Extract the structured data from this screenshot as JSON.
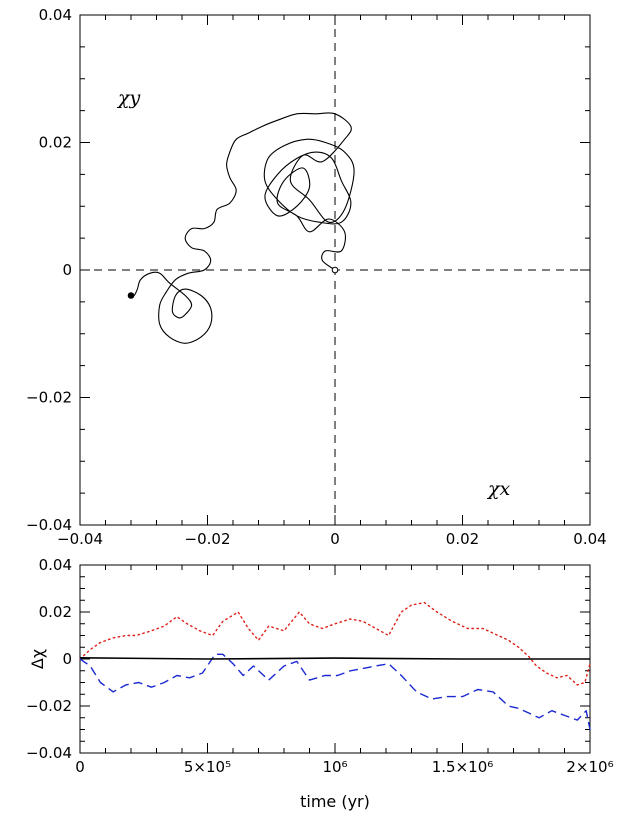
{
  "chart_data": [
    {
      "type": "line",
      "title": "",
      "xlabel": "χx",
      "ylabel": "χy",
      "xlim": [
        -0.04,
        0.04
      ],
      "ylim": [
        -0.04,
        0.04
      ],
      "xticks": [
        "−0.04",
        "−0.02",
        "0",
        "0.02",
        "0.04"
      ],
      "yticks": [
        "−0.04",
        "−0.02",
        "0",
        "0.02",
        "0.04"
      ],
      "reference_lines": [
        {
          "axis": "x",
          "value": 0
        },
        {
          "axis": "y",
          "value": 0
        }
      ],
      "start_marker": [
        0.0,
        0.0
      ],
      "end_marker": [
        -0.032,
        -0.004
      ],
      "series": [
        {
          "color": "#000000",
          "points": [
            [
              0.0,
              0.0
            ],
            [
              -0.002,
              0.0015
            ],
            [
              -0.0015,
              0.003
            ],
            [
              0.001,
              0.003
            ],
            [
              0.0015,
              0.006
            ],
            [
              -0.001,
              0.008
            ],
            [
              -0.004,
              0.006
            ],
            [
              -0.006,
              0.0085
            ],
            [
              -0.009,
              0.0105
            ],
            [
              -0.008,
              0.014
            ],
            [
              -0.005,
              0.016
            ],
            [
              -0.004,
              0.013
            ],
            [
              -0.006,
              0.01
            ],
            [
              -0.009,
              0.0085
            ],
            [
              -0.011,
              0.0115
            ],
            [
              -0.009,
              0.015
            ],
            [
              -0.006,
              0.0175
            ],
            [
              -0.003,
              0.0185
            ],
            [
              -0.0005,
              0.0175
            ],
            [
              0.001,
              0.014
            ],
            [
              0.0025,
              0.0105
            ],
            [
              0.001,
              0.0075
            ],
            [
              -0.0025,
              0.0075
            ],
            [
              -0.006,
              0.0085
            ],
            [
              -0.009,
              0.011
            ],
            [
              -0.011,
              0.014
            ],
            [
              -0.0105,
              0.0175
            ],
            [
              -0.008,
              0.0195
            ],
            [
              -0.0045,
              0.0205
            ],
            [
              -0.0015,
              0.02
            ],
            [
              0.0015,
              0.0185
            ],
            [
              0.003,
              0.0155
            ],
            [
              0.0015,
              0.0095
            ],
            [
              -0.001,
              0.0075
            ],
            [
              -0.004,
              0.011
            ],
            [
              -0.007,
              0.014
            ],
            [
              -0.005,
              0.018
            ],
            [
              -0.002,
              0.017
            ],
            [
              0.0015,
              0.0205
            ],
            [
              0.0025,
              0.0225
            ],
            [
              0.0,
              0.0245
            ],
            [
              -0.003,
              0.0245
            ],
            [
              -0.006,
              0.0245
            ],
            [
              -0.009,
              0.0235
            ],
            [
              -0.0115,
              0.0225
            ],
            [
              -0.0135,
              0.0215
            ],
            [
              -0.0155,
              0.0205
            ],
            [
              -0.0165,
              0.0185
            ],
            [
              -0.017,
              0.0165
            ],
            [
              -0.0165,
              0.0145
            ],
            [
              -0.0155,
              0.0125
            ],
            [
              -0.0165,
              0.0105
            ],
            [
              -0.0185,
              0.0095
            ],
            [
              -0.019,
              0.0075
            ],
            [
              -0.0205,
              0.0065
            ],
            [
              -0.0225,
              0.0065
            ],
            [
              -0.0235,
              0.005
            ],
            [
              -0.0225,
              0.0035
            ],
            [
              -0.0205,
              0.003
            ],
            [
              -0.0195,
              0.0015
            ],
            [
              -0.0205,
              0.0
            ],
            [
              -0.023,
              -0.0005
            ],
            [
              -0.025,
              -0.0015
            ],
            [
              -0.0265,
              -0.0035
            ],
            [
              -0.0275,
              -0.0055
            ],
            [
              -0.0275,
              -0.0085
            ],
            [
              -0.026,
              -0.0105
            ],
            [
              -0.0235,
              -0.0115
            ],
            [
              -0.021,
              -0.0105
            ],
            [
              -0.0195,
              -0.0085
            ],
            [
              -0.0195,
              -0.006
            ],
            [
              -0.021,
              -0.004
            ],
            [
              -0.0235,
              -0.003
            ],
            [
              -0.025,
              -0.004
            ],
            [
              -0.0255,
              -0.0065
            ],
            [
              -0.0245,
              -0.0075
            ],
            [
              -0.0235,
              -0.007
            ],
            [
              -0.0225,
              -0.0055
            ],
            [
              -0.0235,
              -0.004
            ],
            [
              -0.026,
              -0.002
            ],
            [
              -0.0275,
              -0.0005
            ],
            [
              -0.029,
              -0.0005
            ],
            [
              -0.0305,
              -0.0015
            ],
            [
              -0.031,
              -0.003
            ],
            [
              -0.0315,
              -0.004
            ],
            [
              -0.032,
              -0.004
            ]
          ]
        }
      ]
    },
    {
      "type": "line",
      "title": "",
      "xlabel": "time (yr)",
      "ylabel": "Δχ",
      "xlim": [
        0,
        2000000
      ],
      "ylim": [
        -0.04,
        0.04
      ],
      "xticks": [
        "0",
        "5×10⁵",
        "10⁶",
        "1.5×10⁶",
        "2×10⁶"
      ],
      "yticks": [
        "−0.04",
        "−0.02",
        "0",
        "0.02",
        "0.04"
      ],
      "series": [
        {
          "color": "#e0201a",
          "style": "dotted",
          "x": [
            0,
            40000,
            80000,
            130000,
            180000,
            220000,
            280000,
            330000,
            380000,
            420000,
            470000,
            520000,
            560000,
            620000,
            660000,
            700000,
            740000,
            800000,
            860000,
            900000,
            950000,
            1000000,
            1060000,
            1110000,
            1160000,
            1210000,
            1260000,
            1300000,
            1350000,
            1400000,
            1460000,
            1520000,
            1580000,
            1640000,
            1680000,
            1720000,
            1760000,
            1790000,
            1830000,
            1870000,
            1910000,
            1950000,
            1980000,
            2000000
          ],
          "values": [
            0.0,
            0.004,
            0.007,
            0.009,
            0.01,
            0.01,
            0.012,
            0.014,
            0.018,
            0.015,
            0.012,
            0.01,
            0.016,
            0.02,
            0.013,
            0.008,
            0.014,
            0.012,
            0.02,
            0.015,
            0.013,
            0.015,
            0.017,
            0.016,
            0.013,
            0.01,
            0.02,
            0.023,
            0.024,
            0.02,
            0.016,
            0.013,
            0.013,
            0.01,
            0.008,
            0.005,
            0.001,
            -0.003,
            -0.006,
            -0.008,
            -0.007,
            -0.011,
            -0.01,
            -0.002
          ]
        },
        {
          "color": "#1a2ad0",
          "style": "dashed",
          "x": [
            0,
            40000,
            80000,
            130000,
            180000,
            230000,
            280000,
            330000,
            380000,
            430000,
            480000,
            530000,
            560000,
            600000,
            640000,
            680000,
            740000,
            800000,
            850000,
            900000,
            960000,
            1010000,
            1060000,
            1110000,
            1160000,
            1210000,
            1260000,
            1320000,
            1380000,
            1440000,
            1500000,
            1560000,
            1620000,
            1680000,
            1720000,
            1760000,
            1800000,
            1850000,
            1900000,
            1950000,
            1985000,
            2000000
          ],
          "values": [
            0.0,
            -0.003,
            -0.01,
            -0.014,
            -0.011,
            -0.01,
            -0.012,
            -0.01,
            -0.007,
            -0.008,
            -0.006,
            0.002,
            0.002,
            -0.002,
            -0.007,
            -0.003,
            -0.009,
            -0.003,
            -0.001,
            -0.009,
            -0.007,
            -0.007,
            -0.005,
            -0.004,
            -0.003,
            -0.002,
            -0.007,
            -0.014,
            -0.017,
            -0.016,
            -0.016,
            -0.013,
            -0.014,
            -0.02,
            -0.021,
            -0.023,
            -0.025,
            -0.022,
            -0.024,
            -0.026,
            -0.022,
            -0.03
          ]
        },
        {
          "color": "#000000",
          "style": "solid",
          "x": [
            0,
            500000,
            1000000,
            1500000,
            2000000
          ],
          "values": [
            0.0005,
            0.0,
            0.0004,
            0.0,
            0.0
          ]
        }
      ]
    }
  ]
}
